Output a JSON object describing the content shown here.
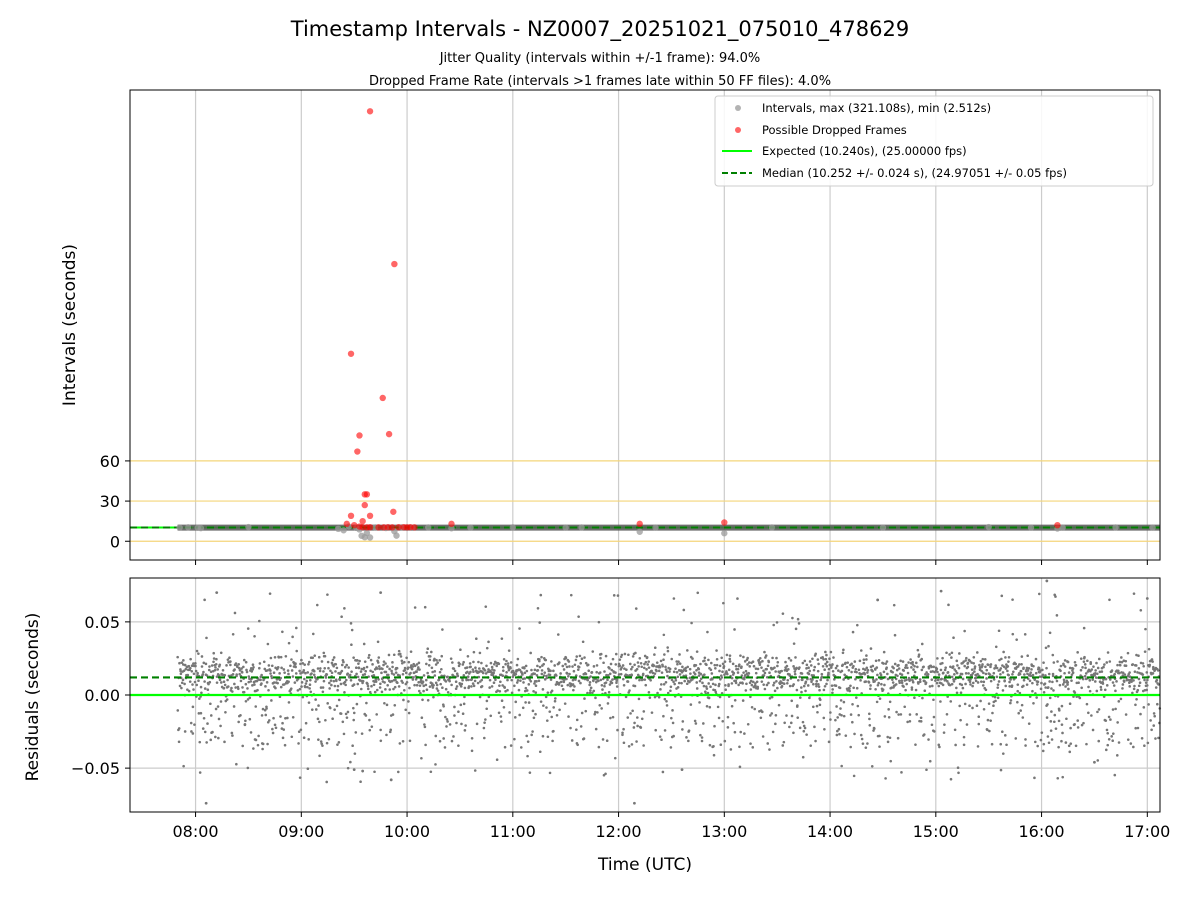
{
  "chart_data": [
    {
      "type": "scatter",
      "title": "Timestamp Intervals - NZ0007_20251021_075010_478629",
      "subtitles": [
        "Jitter Quality (intervals within +/-1 frame): 94.0%",
        "Dropped Frame Rate (intervals >1 frames late within 50 FF files): 4.0%"
      ],
      "ylabel": "Intervals (seconds)",
      "ylim": [
        -14,
        337
      ],
      "xlim_hours": [
        7.38,
        17.12
      ],
      "yticks": [
        0,
        30,
        60
      ],
      "ytick_labels": [
        "0",
        "30",
        "60"
      ],
      "threshold_lines": [
        0,
        30,
        60
      ],
      "threshold_color": "#f4d57a",
      "grid_color": "#cccccc",
      "series": [
        {
          "name": "Intervals, max (321.108s), min (2.512s)",
          "color": "#999999",
          "max": 321.108,
          "min": 2.512,
          "points": [
            [
              7.85,
              10.2
            ],
            [
              7.93,
              10.4
            ],
            [
              8.02,
              10.1
            ],
            [
              8.05,
              9.8
            ],
            [
              8.5,
              10.6
            ],
            [
              9.35,
              9.3
            ],
            [
              9.4,
              8.2
            ],
            [
              9.45,
              11.0
            ],
            [
              9.52,
              10.0
            ],
            [
              9.55,
              8.8
            ],
            [
              9.57,
              4.1
            ],
            [
              9.6,
              3.0
            ],
            [
              9.62,
              6.2
            ],
            [
              9.65,
              2.8
            ],
            [
              9.7,
              10.3
            ],
            [
              9.8,
              9.9
            ],
            [
              9.88,
              7.5
            ],
            [
              9.9,
              4.2
            ],
            [
              9.95,
              10.4
            ],
            [
              10.05,
              10.1
            ],
            [
              10.2,
              10.3
            ],
            [
              10.42,
              9.7
            ],
            [
              10.6,
              10.2
            ],
            [
              11.0,
              10.4
            ],
            [
              11.5,
              10.2
            ],
            [
              11.65,
              10.3
            ],
            [
              12.2,
              7.1
            ],
            [
              12.35,
              10.2
            ],
            [
              13.0,
              6.0
            ],
            [
              13.45,
              10.3
            ],
            [
              14.5,
              10.2
            ],
            [
              15.5,
              10.6
            ],
            [
              15.9,
              10.2
            ],
            [
              16.15,
              9.5
            ],
            [
              16.2,
              10.2
            ],
            [
              16.7,
              10.3
            ],
            [
              17.05,
              10.2
            ]
          ]
        },
        {
          "name": "Possible Dropped Frames",
          "color": "#ff0000",
          "points": [
            [
              9.65,
              321.1
            ],
            [
              9.88,
              207.0
            ],
            [
              9.47,
              140.0
            ],
            [
              9.77,
              107.0
            ],
            [
              9.55,
              79.0
            ],
            [
              9.83,
              80.0
            ],
            [
              9.53,
              67.0
            ],
            [
              9.6,
              35.0
            ],
            [
              9.62,
              35.0
            ],
            [
              9.6,
              27.0
            ],
            [
              9.87,
              22.0
            ],
            [
              9.47,
              19.0
            ],
            [
              9.65,
              19.0
            ],
            [
              9.58,
              15.0
            ],
            [
              9.43,
              13.0
            ],
            [
              9.5,
              12.0
            ],
            [
              9.55,
              11.0
            ],
            [
              9.58,
              10.5
            ],
            [
              9.62,
              10.4
            ],
            [
              9.65,
              10.5
            ],
            [
              9.73,
              10.4
            ],
            [
              9.78,
              10.4
            ],
            [
              9.82,
              10.5
            ],
            [
              9.86,
              10.4
            ],
            [
              9.92,
              10.5
            ],
            [
              9.97,
              10.5
            ],
            [
              10.0,
              10.4
            ],
            [
              10.03,
              10.5
            ],
            [
              10.07,
              10.4
            ],
            [
              10.42,
              13.0
            ],
            [
              12.2,
              13.0
            ],
            [
              13.0,
              14.0
            ],
            [
              16.15,
              12.0
            ]
          ]
        },
        {
          "name": "Expected (10.240s), (25.00000 fps)",
          "kind": "hline",
          "value": 10.24,
          "color": "#00ff00"
        },
        {
          "name": "Median (10.252 +/- 0.024 s), (24.97051 +/- 0.05 fps)",
          "kind": "hline",
          "value": 10.252,
          "color": "#008000"
        }
      ],
      "legend_loc": "upper right"
    },
    {
      "type": "scatter",
      "xlabel": "Time (UTC)",
      "ylabel": "Residuals (seconds)",
      "ylim": [
        -0.08,
        0.08
      ],
      "xlim_hours": [
        7.38,
        17.12
      ],
      "yticks": [
        -0.05,
        0.0,
        0.05
      ],
      "ytick_labels": [
        "−0.05",
        "0.00",
        "0.05"
      ],
      "xticks_hours": [
        8,
        9,
        10,
        11,
        12,
        13,
        14,
        15,
        16,
        17
      ],
      "xtick_labels": [
        "08:00",
        "09:00",
        "10:00",
        "11:00",
        "12:00",
        "13:00",
        "14:00",
        "15:00",
        "16:00",
        "17:00"
      ],
      "expected_residual": 0.0,
      "median_residual": 0.012,
      "point_color": "#777777",
      "time_range_hours": [
        7.83,
        17.12
      ],
      "point_count": 3000,
      "distribution": {
        "main_cluster": {
          "fraction": 0.72,
          "center": 0.014,
          "spread": 0.007
        },
        "lower_band": {
          "fraction": 0.18,
          "range": [
            -0.036,
            0.0
          ]
        },
        "outliers": {
          "fraction": 0.1,
          "range": [
            -0.06,
            0.07
          ]
        }
      },
      "extreme_points": [
        [
          8.1,
          -0.074
        ],
        [
          12.15,
          -0.074
        ],
        [
          9.85,
          -0.058
        ],
        [
          9.58,
          -0.052
        ],
        [
          9.5,
          -0.051
        ],
        [
          16.05,
          0.078
        ],
        [
          8.2,
          0.07
        ],
        [
          9.75,
          0.07
        ],
        [
          14.45,
          0.065
        ],
        [
          15.05,
          0.071
        ],
        [
          17.0,
          0.066
        ],
        [
          12.6,
          -0.051
        ],
        [
          16.5,
          -0.046
        ]
      ]
    }
  ]
}
